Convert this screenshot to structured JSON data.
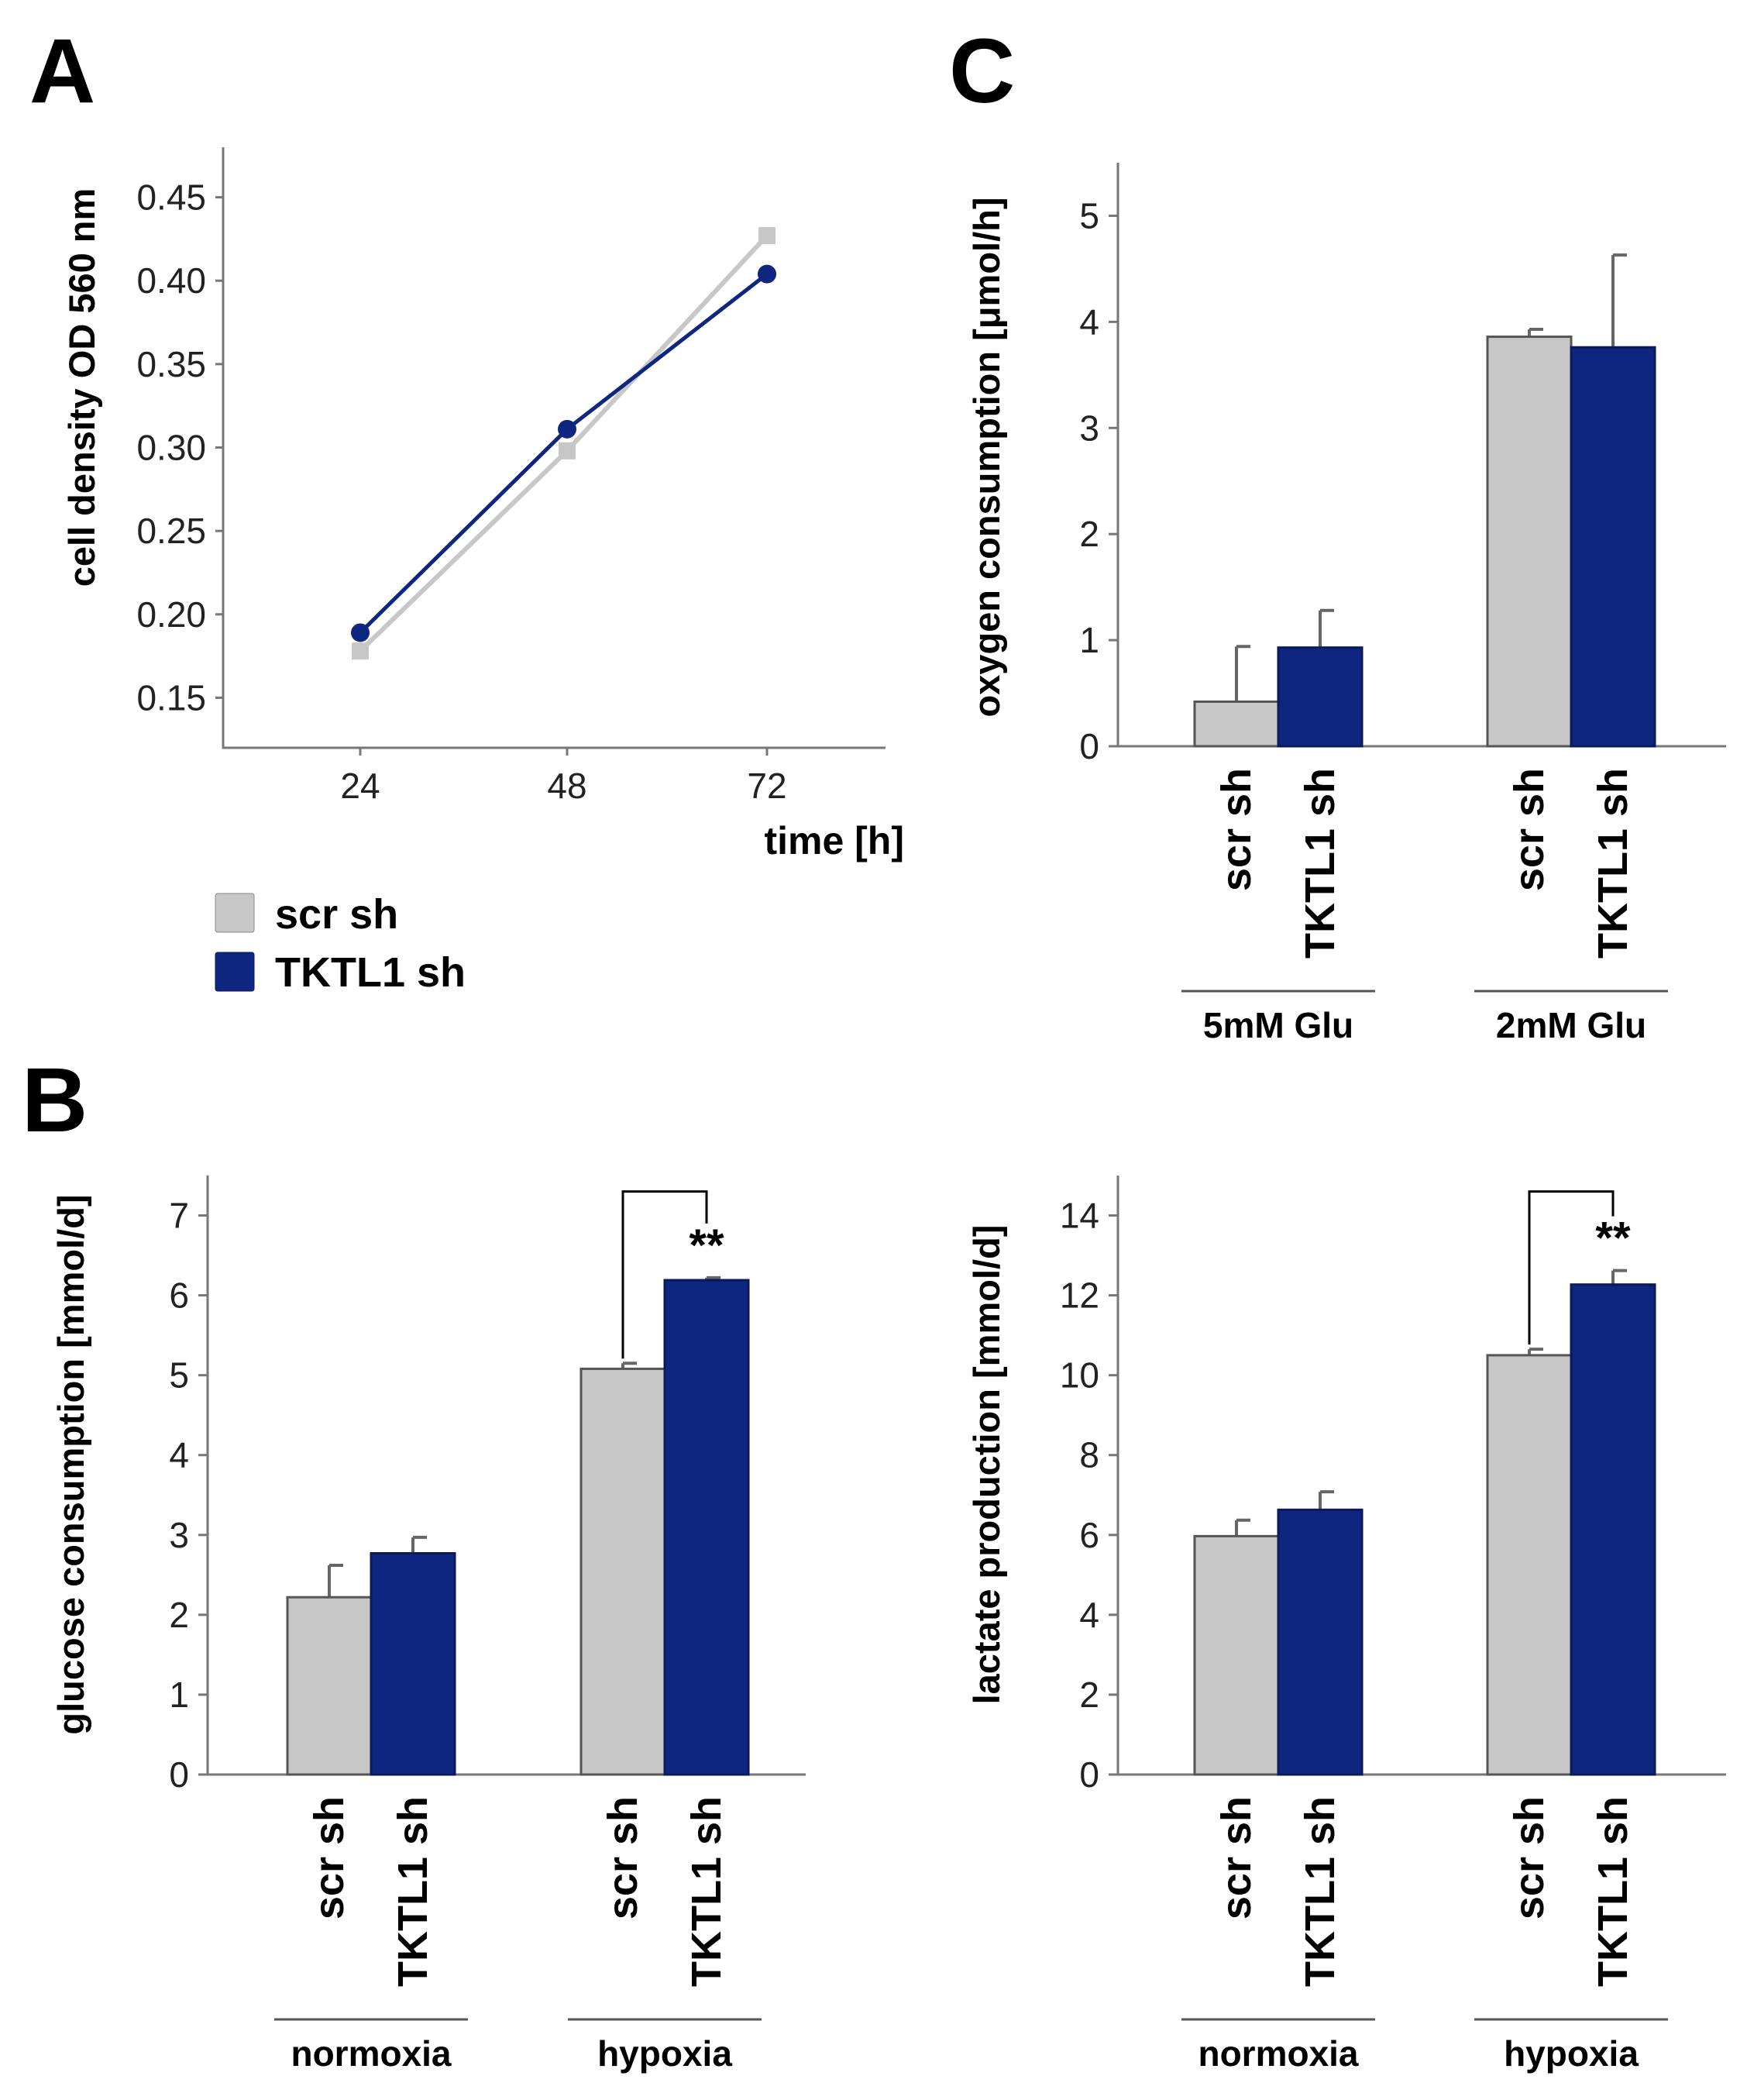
{
  "panel_labels": [
    "A",
    "B",
    "C"
  ],
  "colors": {
    "scr_sh": "#c7c7c7",
    "tktl1_sh": "#0f2680",
    "axis": "#777777"
  },
  "legend": [
    {
      "label": "scr sh",
      "color": "#c7c7c7"
    },
    {
      "label": "TKTL1 sh",
      "color": "#0f2680"
    }
  ],
  "chart_data": [
    {
      "id": "A",
      "type": "line",
      "title": "",
      "xlabel": "time [h]",
      "ylabel": "cell density OD 560 nm",
      "x": [
        24,
        48,
        72
      ],
      "x_tick_labels": [
        "24",
        "48",
        "72"
      ],
      "y_ticks": [
        "0.15",
        "0.20",
        "0.25",
        "0.30",
        "0.35",
        "0.40",
        "0.45"
      ],
      "ylim": [
        0.12,
        0.48
      ],
      "grid": false,
      "series": [
        {
          "name": "scr sh",
          "values": [
            0.178,
            0.298,
            0.427
          ]
        },
        {
          "name": "TKTL1 sh",
          "values": [
            0.189,
            0.311,
            0.404
          ]
        }
      ]
    },
    {
      "id": "B-glucose",
      "type": "bar",
      "ylabel": "glucose consumption [mmol/d]",
      "ylim": [
        0,
        7.5
      ],
      "y_ticks": [
        "0",
        "1",
        "2",
        "3",
        "4",
        "5",
        "6",
        "7"
      ],
      "groups": [
        "normoxia",
        "hypoxia"
      ],
      "categories": [
        "scr sh",
        "TKTL1 sh"
      ],
      "series": [
        {
          "name": "scr sh",
          "values": [
            2.22,
            5.08
          ],
          "errors": [
            0.4,
            0.07
          ]
        },
        {
          "name": "TKTL1 sh",
          "values": [
            2.77,
            6.19
          ],
          "errors": [
            0.2,
            0.03
          ]
        }
      ],
      "significance": {
        "group": "hypoxia",
        "label": "**",
        "bracket_top": 7.3
      }
    },
    {
      "id": "B-lactate",
      "type": "bar",
      "ylabel": "lactate production [mmol/d]",
      "ylim": [
        0,
        15
      ],
      "y_ticks": [
        "0",
        "2",
        "4",
        "6",
        "8",
        "10",
        "12",
        "14"
      ],
      "groups": [
        "normoxia",
        "hypoxia"
      ],
      "categories": [
        "scr sh",
        "TKTL1 sh"
      ],
      "series": [
        {
          "name": "scr sh",
          "values": [
            5.97,
            10.5
          ],
          "errors": [
            0.4,
            0.15
          ]
        },
        {
          "name": "TKTL1 sh",
          "values": [
            6.63,
            12.27
          ],
          "errors": [
            0.45,
            0.35
          ]
        }
      ],
      "significance": {
        "group": "hypoxia",
        "label": "**",
        "bracket_top": 14.6
      }
    },
    {
      "id": "C",
      "type": "bar",
      "ylabel": "oxygen consumption [μmol/h]",
      "ylim": [
        0,
        5.5
      ],
      "y_ticks": [
        "0",
        "1",
        "2",
        "3",
        "4",
        "5"
      ],
      "groups": [
        "5mM Glu",
        "2mM Glu"
      ],
      "categories": [
        "scr sh",
        "TKTL1 sh"
      ],
      "series": [
        {
          "name": "scr sh",
          "values": [
            0.42,
            3.86
          ],
          "errors": [
            0.52,
            0.07
          ]
        },
        {
          "name": "TKTL1 sh",
          "values": [
            0.93,
            3.76
          ],
          "errors": [
            0.35,
            0.87
          ]
        }
      ]
    }
  ]
}
